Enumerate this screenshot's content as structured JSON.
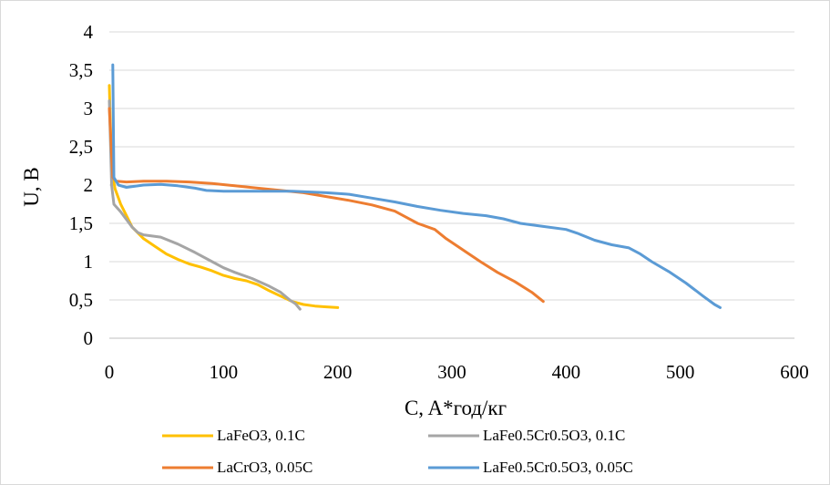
{
  "chart_data": {
    "type": "line",
    "xlabel": "C, A*год/кг",
    "ylabel": "U, B",
    "xlim": [
      0,
      600
    ],
    "ylim": [
      0,
      4
    ],
    "x_ticks": [
      "0",
      "100",
      "200",
      "300",
      "400",
      "500",
      "600"
    ],
    "y_ticks": [
      "0",
      "0,5",
      "1",
      "1,5",
      "2",
      "2,5",
      "3",
      "3,5",
      "4"
    ],
    "grid": "horizontal",
    "legend_position": "bottom",
    "series": [
      {
        "name": "LaFeO3, 0.1C",
        "color": "#FFC000",
        "points": [
          [
            0,
            3.3
          ],
          [
            2,
            2.2
          ],
          [
            5,
            1.95
          ],
          [
            10,
            1.75
          ],
          [
            15,
            1.6
          ],
          [
            20,
            1.45
          ],
          [
            30,
            1.3
          ],
          [
            40,
            1.2
          ],
          [
            50,
            1.1
          ],
          [
            60,
            1.03
          ],
          [
            70,
            0.97
          ],
          [
            80,
            0.93
          ],
          [
            90,
            0.88
          ],
          [
            100,
            0.82
          ],
          [
            110,
            0.78
          ],
          [
            120,
            0.75
          ],
          [
            130,
            0.7
          ],
          [
            140,
            0.62
          ],
          [
            150,
            0.55
          ],
          [
            160,
            0.48
          ],
          [
            170,
            0.44
          ],
          [
            180,
            0.42
          ],
          [
            190,
            0.41
          ],
          [
            200,
            0.4
          ]
        ]
      },
      {
        "name": "LaFe0.5Cr0.5O3, 0.1C",
        "color": "#A5A5A5",
        "points": [
          [
            0,
            3.1
          ],
          [
            2,
            2.0
          ],
          [
            4,
            1.75
          ],
          [
            10,
            1.65
          ],
          [
            20,
            1.45
          ],
          [
            25,
            1.38
          ],
          [
            30,
            1.35
          ],
          [
            45,
            1.32
          ],
          [
            60,
            1.23
          ],
          [
            75,
            1.12
          ],
          [
            90,
            1.0
          ],
          [
            100,
            0.92
          ],
          [
            110,
            0.86
          ],
          [
            125,
            0.78
          ],
          [
            140,
            0.68
          ],
          [
            150,
            0.6
          ],
          [
            158,
            0.5
          ],
          [
            163,
            0.45
          ],
          [
            167,
            0.38
          ]
        ]
      },
      {
        "name": "LaCrO3, 0.05C",
        "color": "#ED7D31",
        "points": [
          [
            0,
            3.0
          ],
          [
            3,
            2.1
          ],
          [
            6,
            2.05
          ],
          [
            15,
            2.04
          ],
          [
            30,
            2.05
          ],
          [
            50,
            2.05
          ],
          [
            70,
            2.04
          ],
          [
            90,
            2.02
          ],
          [
            110,
            1.99
          ],
          [
            130,
            1.96
          ],
          [
            150,
            1.93
          ],
          [
            170,
            1.9
          ],
          [
            190,
            1.85
          ],
          [
            210,
            1.8
          ],
          [
            230,
            1.74
          ],
          [
            250,
            1.66
          ],
          [
            260,
            1.58
          ],
          [
            270,
            1.5
          ],
          [
            285,
            1.42
          ],
          [
            295,
            1.3
          ],
          [
            310,
            1.15
          ],
          [
            325,
            1.0
          ],
          [
            340,
            0.86
          ],
          [
            355,
            0.74
          ],
          [
            370,
            0.6
          ],
          [
            380,
            0.48
          ]
        ]
      },
      {
        "name": "LaFe0.5Cr0.5O3, 0.05C",
        "color": "#5B9BD5",
        "points": [
          [
            3,
            3.57
          ],
          [
            4,
            2.1
          ],
          [
            8,
            2.0
          ],
          [
            15,
            1.97
          ],
          [
            30,
            2.0
          ],
          [
            45,
            2.01
          ],
          [
            60,
            1.99
          ],
          [
            75,
            1.96
          ],
          [
            85,
            1.93
          ],
          [
            100,
            1.92
          ],
          [
            130,
            1.92
          ],
          [
            160,
            1.92
          ],
          [
            190,
            1.9
          ],
          [
            210,
            1.88
          ],
          [
            230,
            1.83
          ],
          [
            250,
            1.78
          ],
          [
            270,
            1.72
          ],
          [
            290,
            1.67
          ],
          [
            310,
            1.63
          ],
          [
            330,
            1.6
          ],
          [
            345,
            1.56
          ],
          [
            360,
            1.5
          ],
          [
            380,
            1.46
          ],
          [
            400,
            1.42
          ],
          [
            410,
            1.37
          ],
          [
            425,
            1.28
          ],
          [
            440,
            1.22
          ],
          [
            455,
            1.18
          ],
          [
            465,
            1.1
          ],
          [
            475,
            1.0
          ],
          [
            490,
            0.87
          ],
          [
            505,
            0.72
          ],
          [
            520,
            0.55
          ],
          [
            530,
            0.44
          ],
          [
            535,
            0.4
          ]
        ]
      }
    ]
  }
}
